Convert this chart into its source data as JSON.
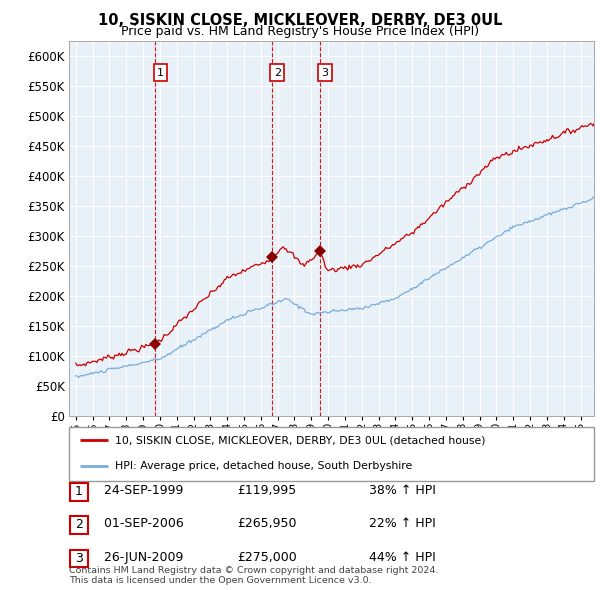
{
  "title": "10, SISKIN CLOSE, MICKLEOVER, DERBY, DE3 0UL",
  "subtitle": "Price paid vs. HM Land Registry's House Price Index (HPI)",
  "ylim": [
    0,
    625000
  ],
  "yticks": [
    0,
    50000,
    100000,
    150000,
    200000,
    250000,
    300000,
    350000,
    400000,
    450000,
    500000,
    550000,
    600000
  ],
  "xlim_start": 1994.6,
  "xlim_end": 2025.8,
  "sale_dates": [
    1999.73,
    2006.67,
    2009.49
  ],
  "sale_prices": [
    119995,
    265950,
    275000
  ],
  "sale_labels": [
    "1",
    "2",
    "3"
  ],
  "red_line_color": "#cc0000",
  "blue_line_color": "#7aaddc",
  "chart_bg_color": "#e8f0f8",
  "sale_marker_color": "#880000",
  "vline_color": "#cc0000",
  "grid_color": "#ffffff",
  "legend_line1": "10, SISKIN CLOSE, MICKLEOVER, DERBY, DE3 0UL (detached house)",
  "legend_line2": "HPI: Average price, detached house, South Derbyshire",
  "table_rows": [
    {
      "num": "1",
      "date": "24-SEP-1999",
      "price": "£119,995",
      "hpi": "38% ↑ HPI"
    },
    {
      "num": "2",
      "date": "01-SEP-2006",
      "price": "£265,950",
      "hpi": "22% ↑ HPI"
    },
    {
      "num": "3",
      "date": "26-JUN-2009",
      "price": "£275,000",
      "hpi": "44% ↑ HPI"
    }
  ],
  "footnote": "Contains HM Land Registry data © Crown copyright and database right 2024.\nThis data is licensed under the Open Government Licence v3.0.",
  "background_color": "#ffffff"
}
